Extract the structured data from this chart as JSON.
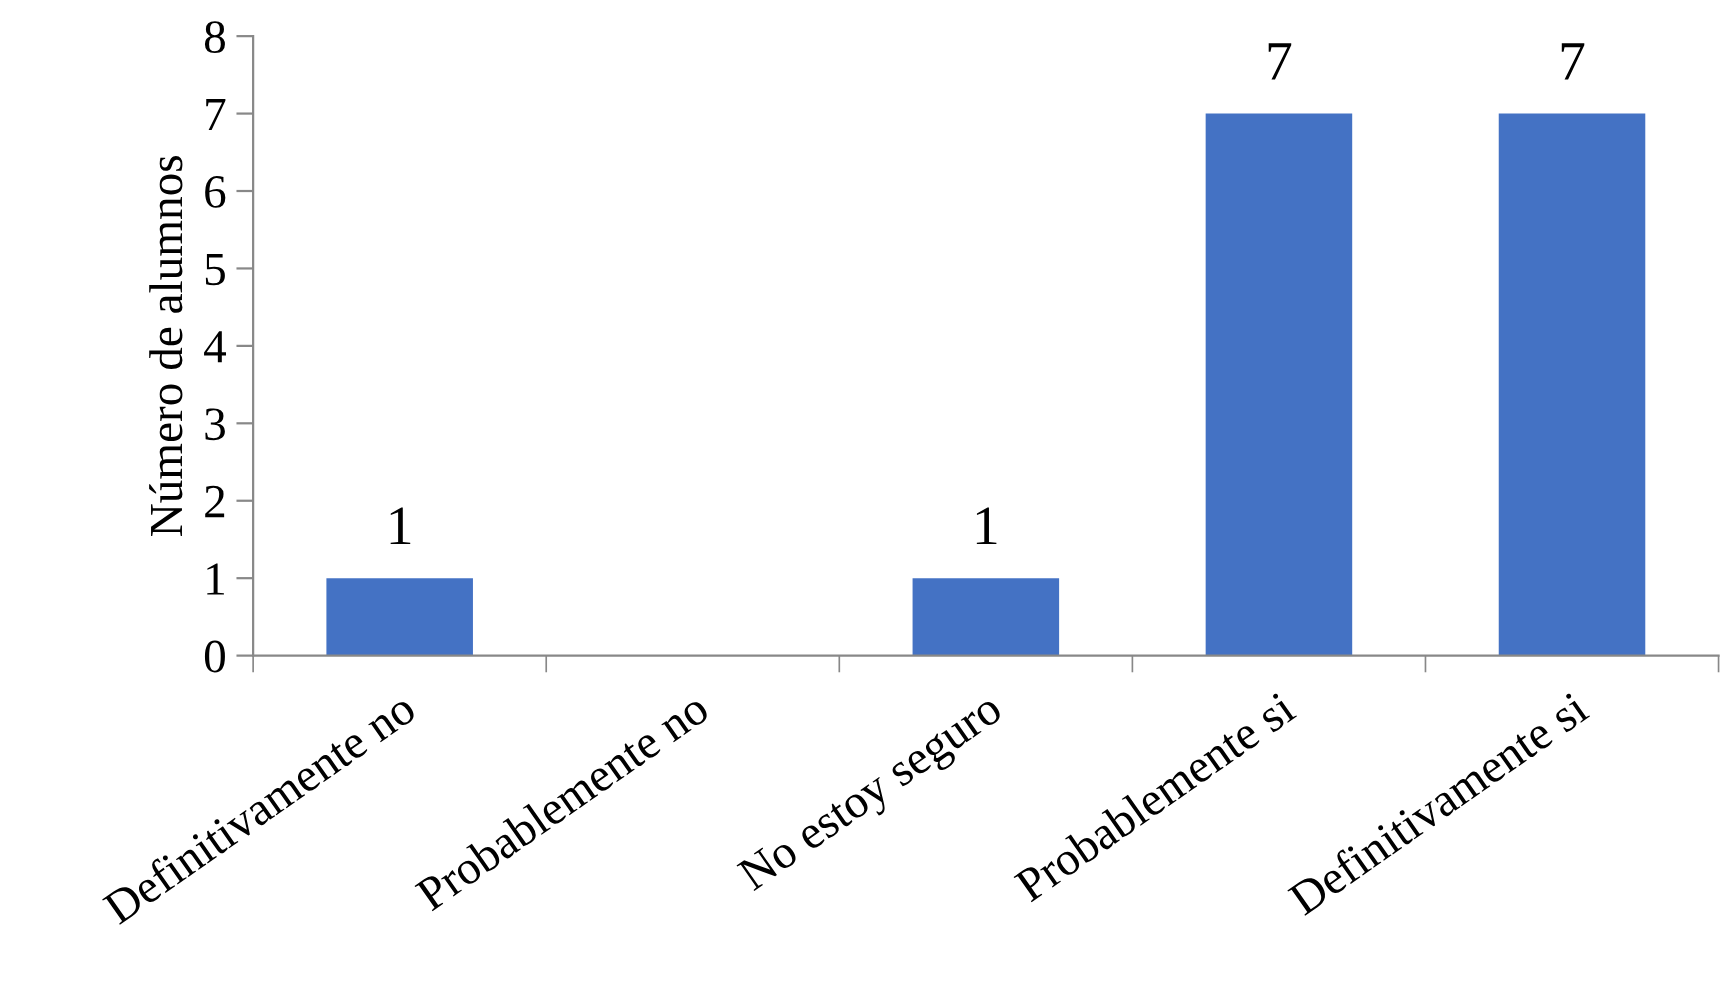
{
  "chart_data": {
    "type": "bar",
    "ylabel": "Número de alumnos",
    "categories": [
      "Definitivamente no",
      "Probablemente no",
      "No estoy seguro",
      "Probablemente si",
      "Definitivamente si"
    ],
    "values": [
      1,
      0,
      1,
      7,
      7
    ],
    "value_labels": [
      "1",
      null,
      "1",
      "7",
      "7"
    ],
    "color": "#4472c4",
    "ylim": [
      0,
      8
    ],
    "yticks": [
      0,
      1,
      2,
      3,
      4,
      5,
      6,
      7,
      8
    ],
    "grid": false
  }
}
